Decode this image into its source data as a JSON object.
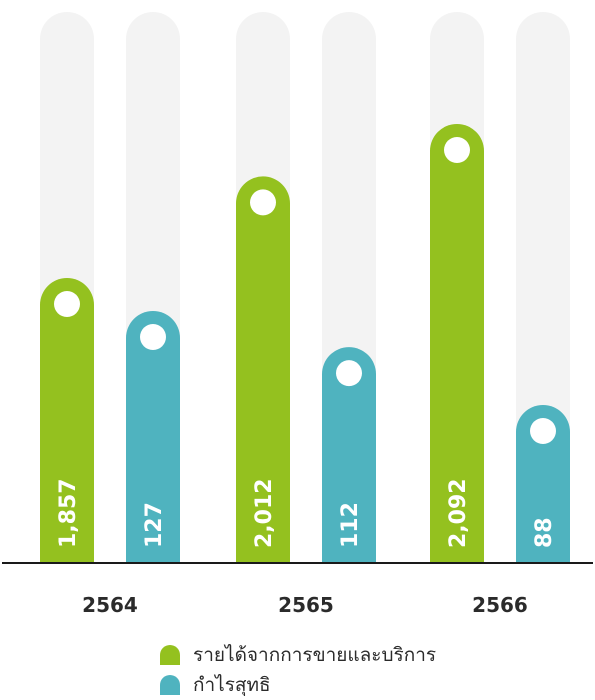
{
  "chart_data": {
    "type": "bar",
    "categories": [
      "2564",
      "2565",
      "2566"
    ],
    "series": [
      {
        "name": "รายได้จากการขายและบริการ",
        "values": [
          1857,
          2012,
          2092
        ],
        "labels": [
          "1,857",
          "2,012",
          "2,092"
        ],
        "color": "#94c11f"
      },
      {
        "name": "กำไรสุทธิ",
        "values": [
          127,
          112,
          88
        ],
        "labels": [
          "127",
          "112",
          "88"
        ],
        "color": "#4fb3bf"
      }
    ],
    "title": "",
    "xlabel": "",
    "ylabel": "",
    "track_color": "#f3f3f3",
    "axis_color": "#1a1a1a",
    "legend_position": "bottom"
  }
}
